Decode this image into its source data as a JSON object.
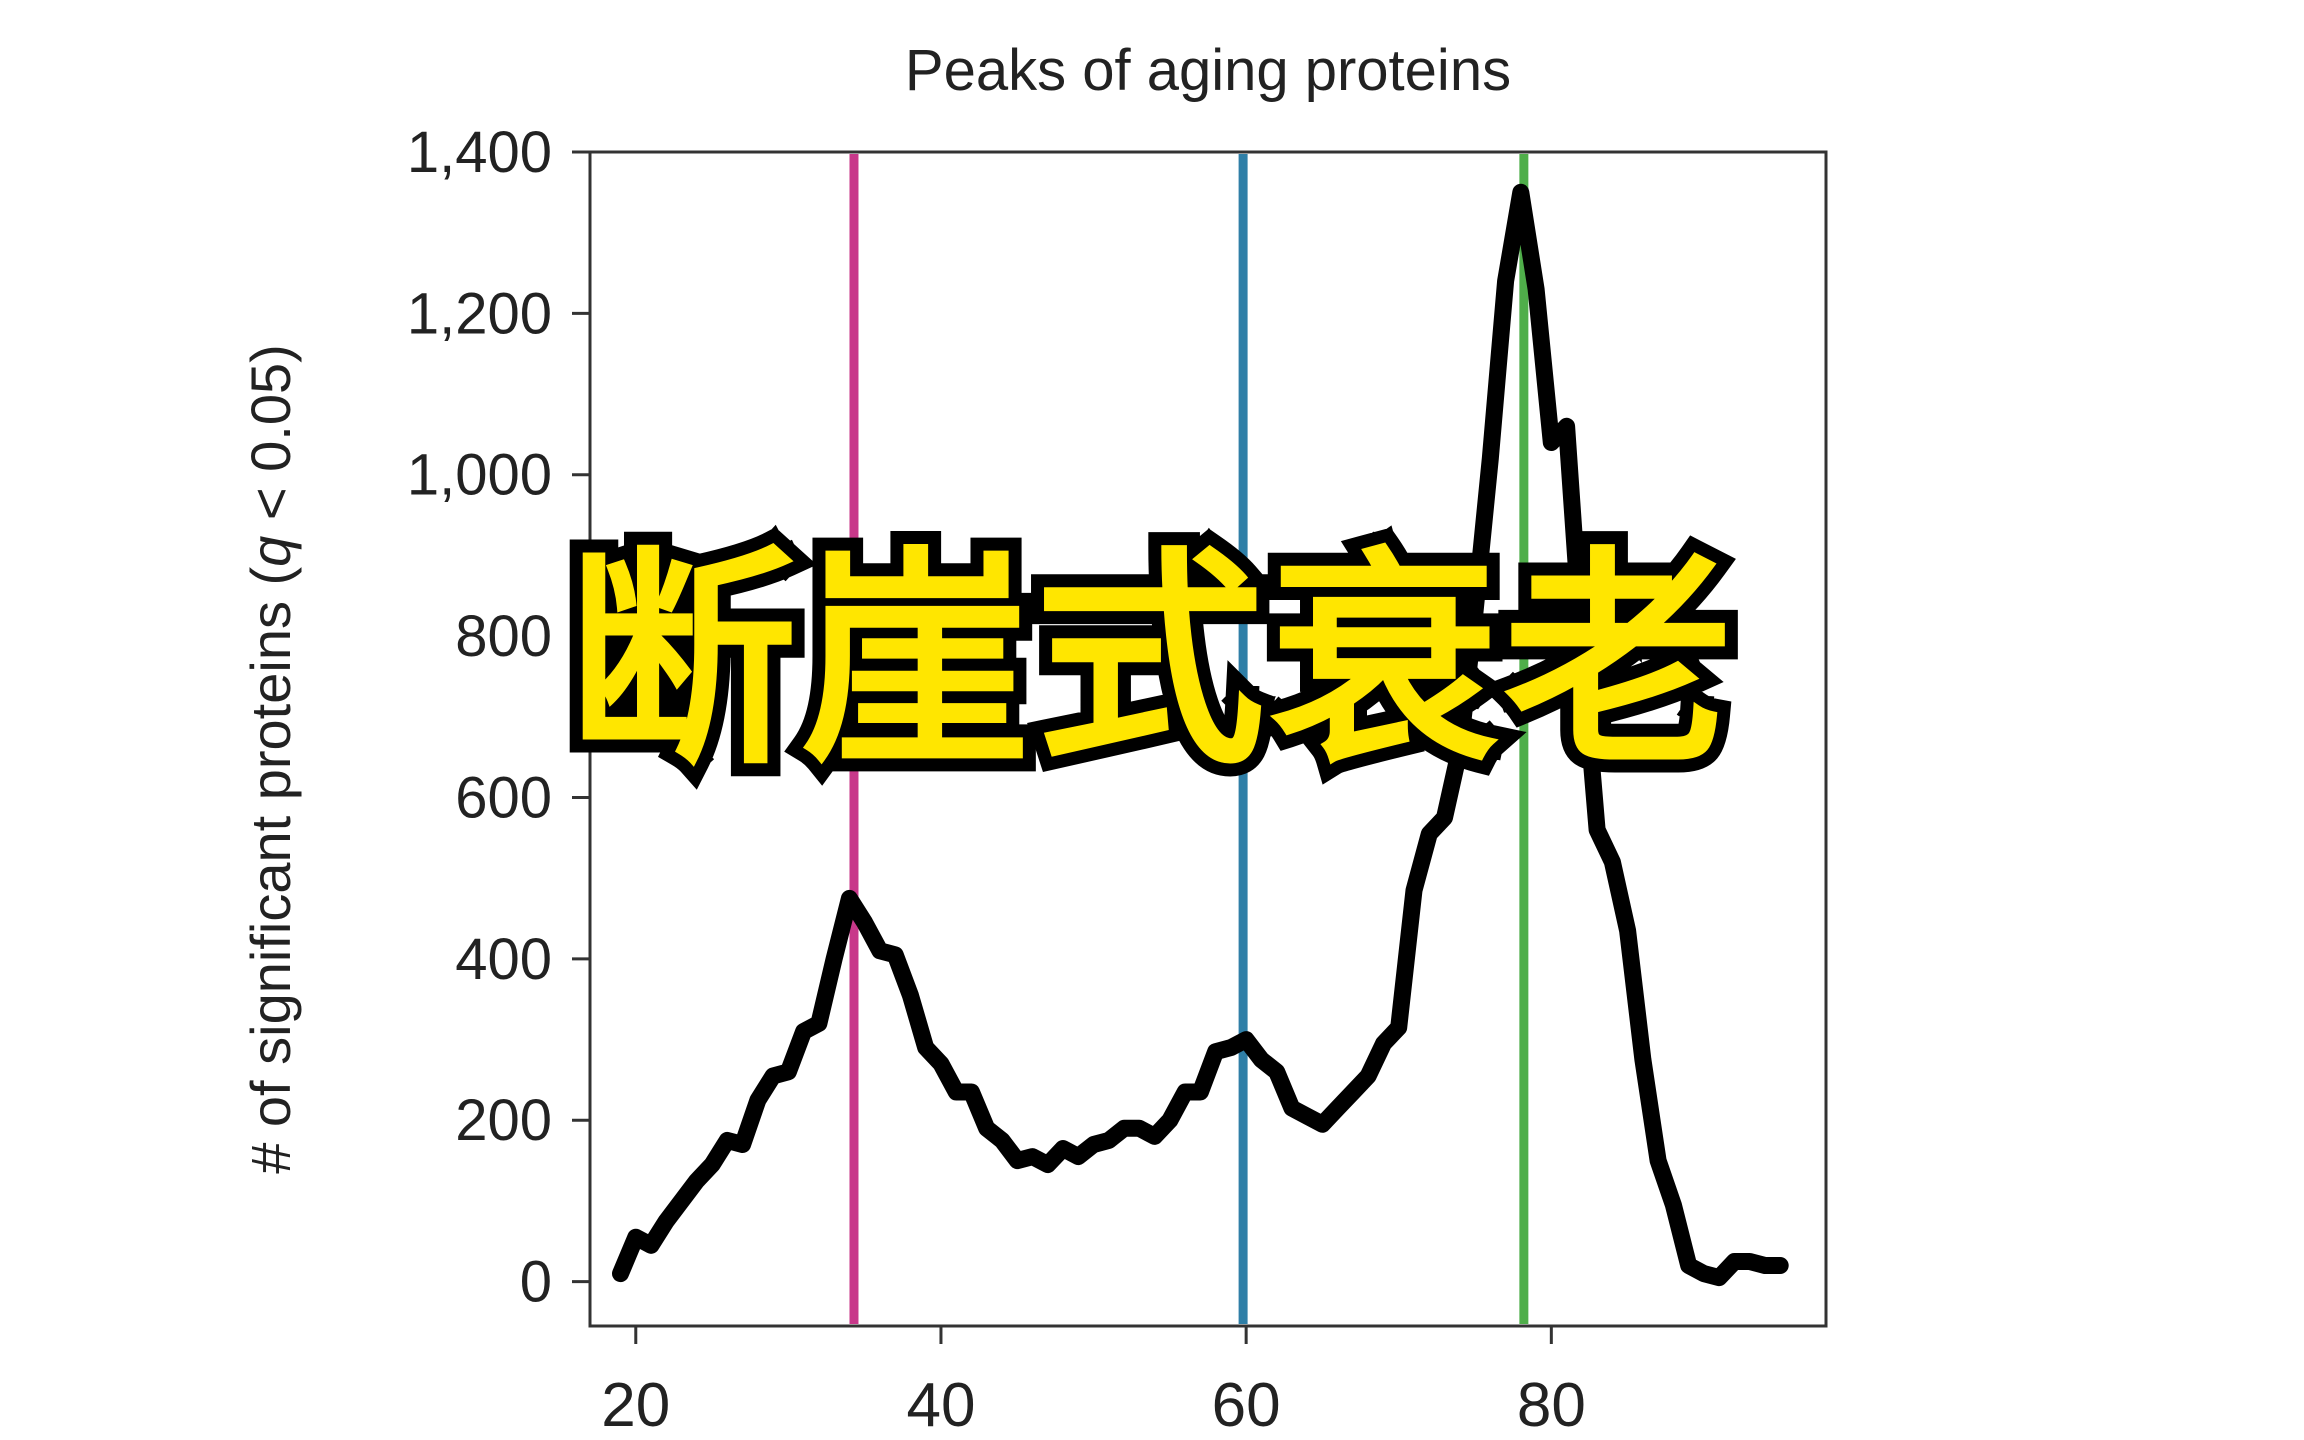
{
  "chart_data": {
    "type": "line",
    "title": "Peaks of aging proteins",
    "xlabel": "",
    "ylabel_prefix": "# of significant proteins (",
    "ylabel_italic": "q",
    "ylabel_suffix": " < 0.05)",
    "xlim": [
      17,
      98
    ],
    "ylim": [
      -55,
      1400
    ],
    "xticks": [
      20,
      40,
      60,
      80
    ],
    "xtick_labels": [
      "20",
      "40",
      "60",
      "80"
    ],
    "yticks": [
      0,
      200,
      400,
      600,
      800,
      1000,
      1200,
      1400
    ],
    "ytick_labels": [
      "0",
      "200",
      "400",
      "600",
      "800",
      "1,000",
      "1,200",
      "1,400"
    ],
    "grid": false,
    "series": [
      {
        "color": "#000000",
        "x": [
          19,
          20,
          21,
          22,
          23,
          24,
          25,
          26,
          27,
          28,
          29,
          30,
          31,
          32,
          33,
          34,
          35,
          36,
          37,
          38,
          39,
          40,
          41,
          42,
          43,
          44,
          45,
          46,
          47,
          48,
          49,
          50,
          51,
          52,
          53,
          54,
          55,
          56,
          57,
          58,
          59,
          60,
          61,
          62,
          63,
          64,
          65,
          66,
          67,
          68,
          69,
          70,
          71,
          72,
          73,
          74,
          75,
          76,
          77,
          78,
          79,
          80,
          81,
          82,
          83,
          84,
          85,
          86,
          87,
          88,
          89,
          90,
          91,
          92,
          93,
          94,
          95
        ],
        "y": [
          10,
          55,
          45,
          75,
          100,
          125,
          145,
          175,
          170,
          225,
          255,
          260,
          310,
          320,
          400,
          475,
          445,
          410,
          405,
          355,
          290,
          270,
          235,
          235,
          190,
          175,
          150,
          155,
          145,
          165,
          155,
          170,
          175,
          190,
          190,
          180,
          200,
          235,
          235,
          285,
          290,
          300,
          275,
          260,
          215,
          205,
          195,
          215,
          235,
          255,
          295,
          315,
          485,
          555,
          575,
          660,
          830,
          1020,
          1240,
          1350,
          1230,
          1040,
          1060,
          785,
          560,
          520,
          435,
          275,
          150,
          95,
          20,
          10,
          5,
          25,
          25,
          20,
          20
        ]
      }
    ],
    "vlines": [
      {
        "x": 34.3,
        "color": "#c8388a"
      },
      {
        "x": 59.8,
        "color": "#2f7fa7"
      },
      {
        "x": 78.2,
        "color": "#4fae4a"
      }
    ]
  },
  "overlay": {
    "text": "断崖式衰老",
    "fill_color": "#ffe600",
    "stroke_color": "#000000"
  }
}
